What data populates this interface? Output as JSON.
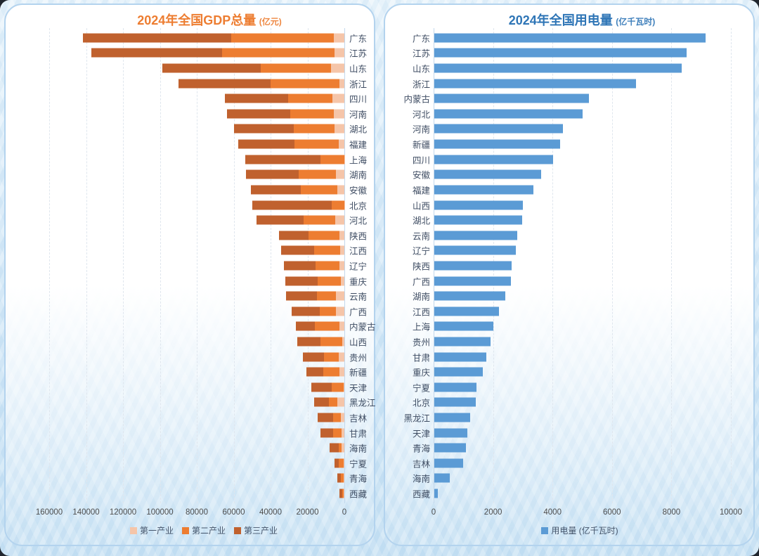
{
  "accent_colors": {
    "gdp_title": "#ED7D31",
    "electricity_title": "#2E75B6",
    "primary_industry": "#F5C5A9",
    "secondary_industry": "#ED7D31",
    "tertiary_industry": "#C0612E",
    "electricity_bar": "#5B9BD5"
  },
  "chart_data": [
    {
      "type": "bar",
      "stacked": true,
      "orientation": "horizontal",
      "bars_direction": "leftward",
      "title": "2024年全国GDP总量",
      "title_unit": "(亿元)",
      "xlabel": "",
      "ylabel": "",
      "xlim": [
        0,
        160000
      ],
      "ticks": [
        160000,
        140000,
        120000,
        100000,
        80000,
        60000,
        40000,
        20000,
        0
      ],
      "grid": "dashed-vertical",
      "legend_position": "bottom",
      "categories": [
        "广东",
        "江苏",
        "山东",
        "浙江",
        "四川",
        "河南",
        "湖北",
        "福建",
        "上海",
        "湖南",
        "安徽",
        "北京",
        "河北",
        "陕西",
        "江西",
        "辽宁",
        "重庆",
        "云南",
        "广西",
        "内蒙古",
        "山西",
        "贵州",
        "新疆",
        "天津",
        "黑龙江",
        "吉林",
        "甘肃",
        "海南",
        "宁夏",
        "青海",
        "西藏"
      ],
      "series": [
        {
          "name": "第一产业",
          "color": "#F5C5A9",
          "values": [
            5600,
            5300,
            7100,
            2600,
            6400,
            5800,
            5500,
            3200,
            100,
            4700,
            3700,
            100,
            4800,
            2800,
            2400,
            2800,
            2100,
            4400,
            4600,
            2700,
            1300,
            3200,
            2800,
            200,
            3700,
            1800,
            1700,
            1600,
            400,
            400,
            200
          ]
        },
        {
          "name": "第二产业",
          "color": "#ED7D31",
          "values": [
            55900,
            61000,
            38400,
            37600,
            24000,
            23700,
            21800,
            24000,
            13000,
            19900,
            19800,
            6800,
            17300,
            16800,
            13800,
            12800,
            12300,
            10600,
            8800,
            13300,
            11600,
            7800,
            8600,
            6600,
            4500,
            4300,
            4400,
            1500,
            2500,
            1500,
            1000
          ]
        },
        {
          "name": "第三产业",
          "color": "#C0612E",
          "values": [
            80100,
            70700,
            53100,
            49900,
            34300,
            34100,
            32700,
            30500,
            40800,
            28600,
            27100,
            42900,
            25400,
            16000,
            18000,
            17000,
            17700,
            16500,
            15200,
            10300,
            12500,
            11600,
            9100,
            11200,
            8300,
            8300,
            6900,
            4900,
            2600,
            2000,
            1500
          ]
        }
      ]
    },
    {
      "type": "bar",
      "stacked": false,
      "orientation": "horizontal",
      "bars_direction": "rightward",
      "title": "2024年全国用电量",
      "title_unit": "(亿千瓦时)",
      "xlabel": "",
      "ylabel": "",
      "xlim": [
        0,
        10000
      ],
      "ticks": [
        0,
        2000,
        4000,
        6000,
        8000,
        10000
      ],
      "grid": "dashed-vertical",
      "legend_position": "bottom",
      "categories": [
        "广东",
        "江苏",
        "山东",
        "浙江",
        "内蒙古",
        "河北",
        "河南",
        "新疆",
        "四川",
        "安徽",
        "福建",
        "山西",
        "湖北",
        "云南",
        "辽宁",
        "陕西",
        "广西",
        "湖南",
        "江西",
        "上海",
        "贵州",
        "甘肃",
        "重庆",
        "宁夏",
        "北京",
        "黑龙江",
        "天津",
        "青海",
        "吉林",
        "海南",
        "西藏"
      ],
      "series": [
        {
          "name": "用电量 (亿千瓦时)",
          "color": "#5B9BD5",
          "values": [
            9120,
            8490,
            8330,
            6780,
            5200,
            4990,
            4330,
            4240,
            4000,
            3600,
            3330,
            2980,
            2950,
            2790,
            2740,
            2610,
            2570,
            2390,
            2180,
            1985,
            1890,
            1750,
            1620,
            1410,
            1400,
            1215,
            1105,
            1075,
            965,
            520,
            120
          ]
        }
      ]
    }
  ]
}
